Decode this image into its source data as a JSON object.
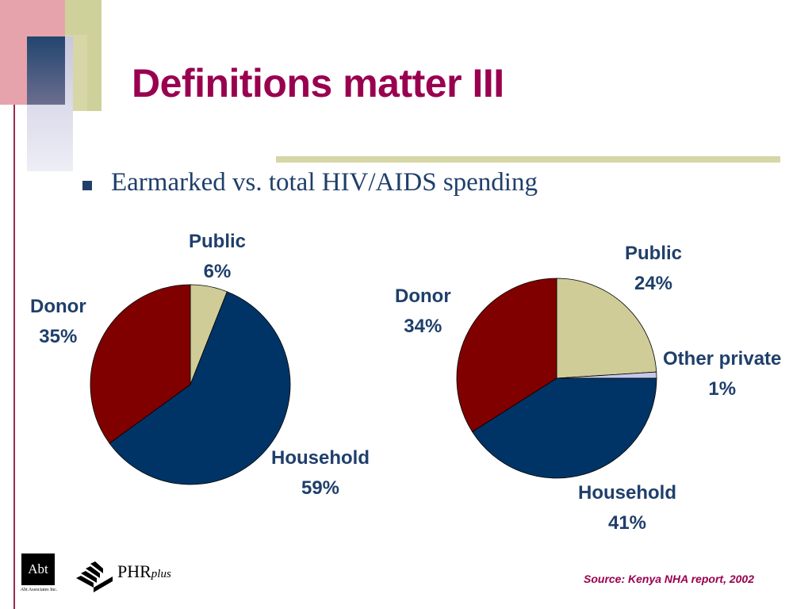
{
  "title": "Definitions matter III",
  "bullet": "Earmarked vs. total HIV/AIDS spending",
  "source": "Source: Kenya NHA report, 2002",
  "logos": {
    "abt": "Abt",
    "abt_sub": "Abt Associates Inc.",
    "phr": "PHR",
    "phr_plus": "plus"
  },
  "colors": {
    "title": "#990050",
    "label": "#1f3f6b",
    "public": "#cfcc98",
    "household": "#003466",
    "donor": "#800000",
    "other_private": "#c6c8ea"
  },
  "chart_data": [
    {
      "type": "pie",
      "title": "",
      "slices": [
        {
          "name": "Public",
          "value": 6,
          "label": "Public",
          "pct": "6%",
          "color": "#cfcc98"
        },
        {
          "name": "Household",
          "value": 59,
          "label": "Household",
          "pct": "59%",
          "color": "#003466"
        },
        {
          "name": "Donor",
          "value": 35,
          "label": "Donor",
          "pct": "35%",
          "color": "#800000"
        }
      ]
    },
    {
      "type": "pie",
      "title": "",
      "slices": [
        {
          "name": "Public",
          "value": 24,
          "label": "Public",
          "pct": "24%",
          "color": "#cfcc98"
        },
        {
          "name": "Other private",
          "value": 1,
          "label": "Other private",
          "pct": "1%",
          "color": "#c6c8ea"
        },
        {
          "name": "Household",
          "value": 41,
          "label": "Household",
          "pct": "41%",
          "color": "#003466"
        },
        {
          "name": "Donor",
          "value": 34,
          "label": "Donor",
          "pct": "34%",
          "color": "#800000"
        }
      ]
    }
  ]
}
